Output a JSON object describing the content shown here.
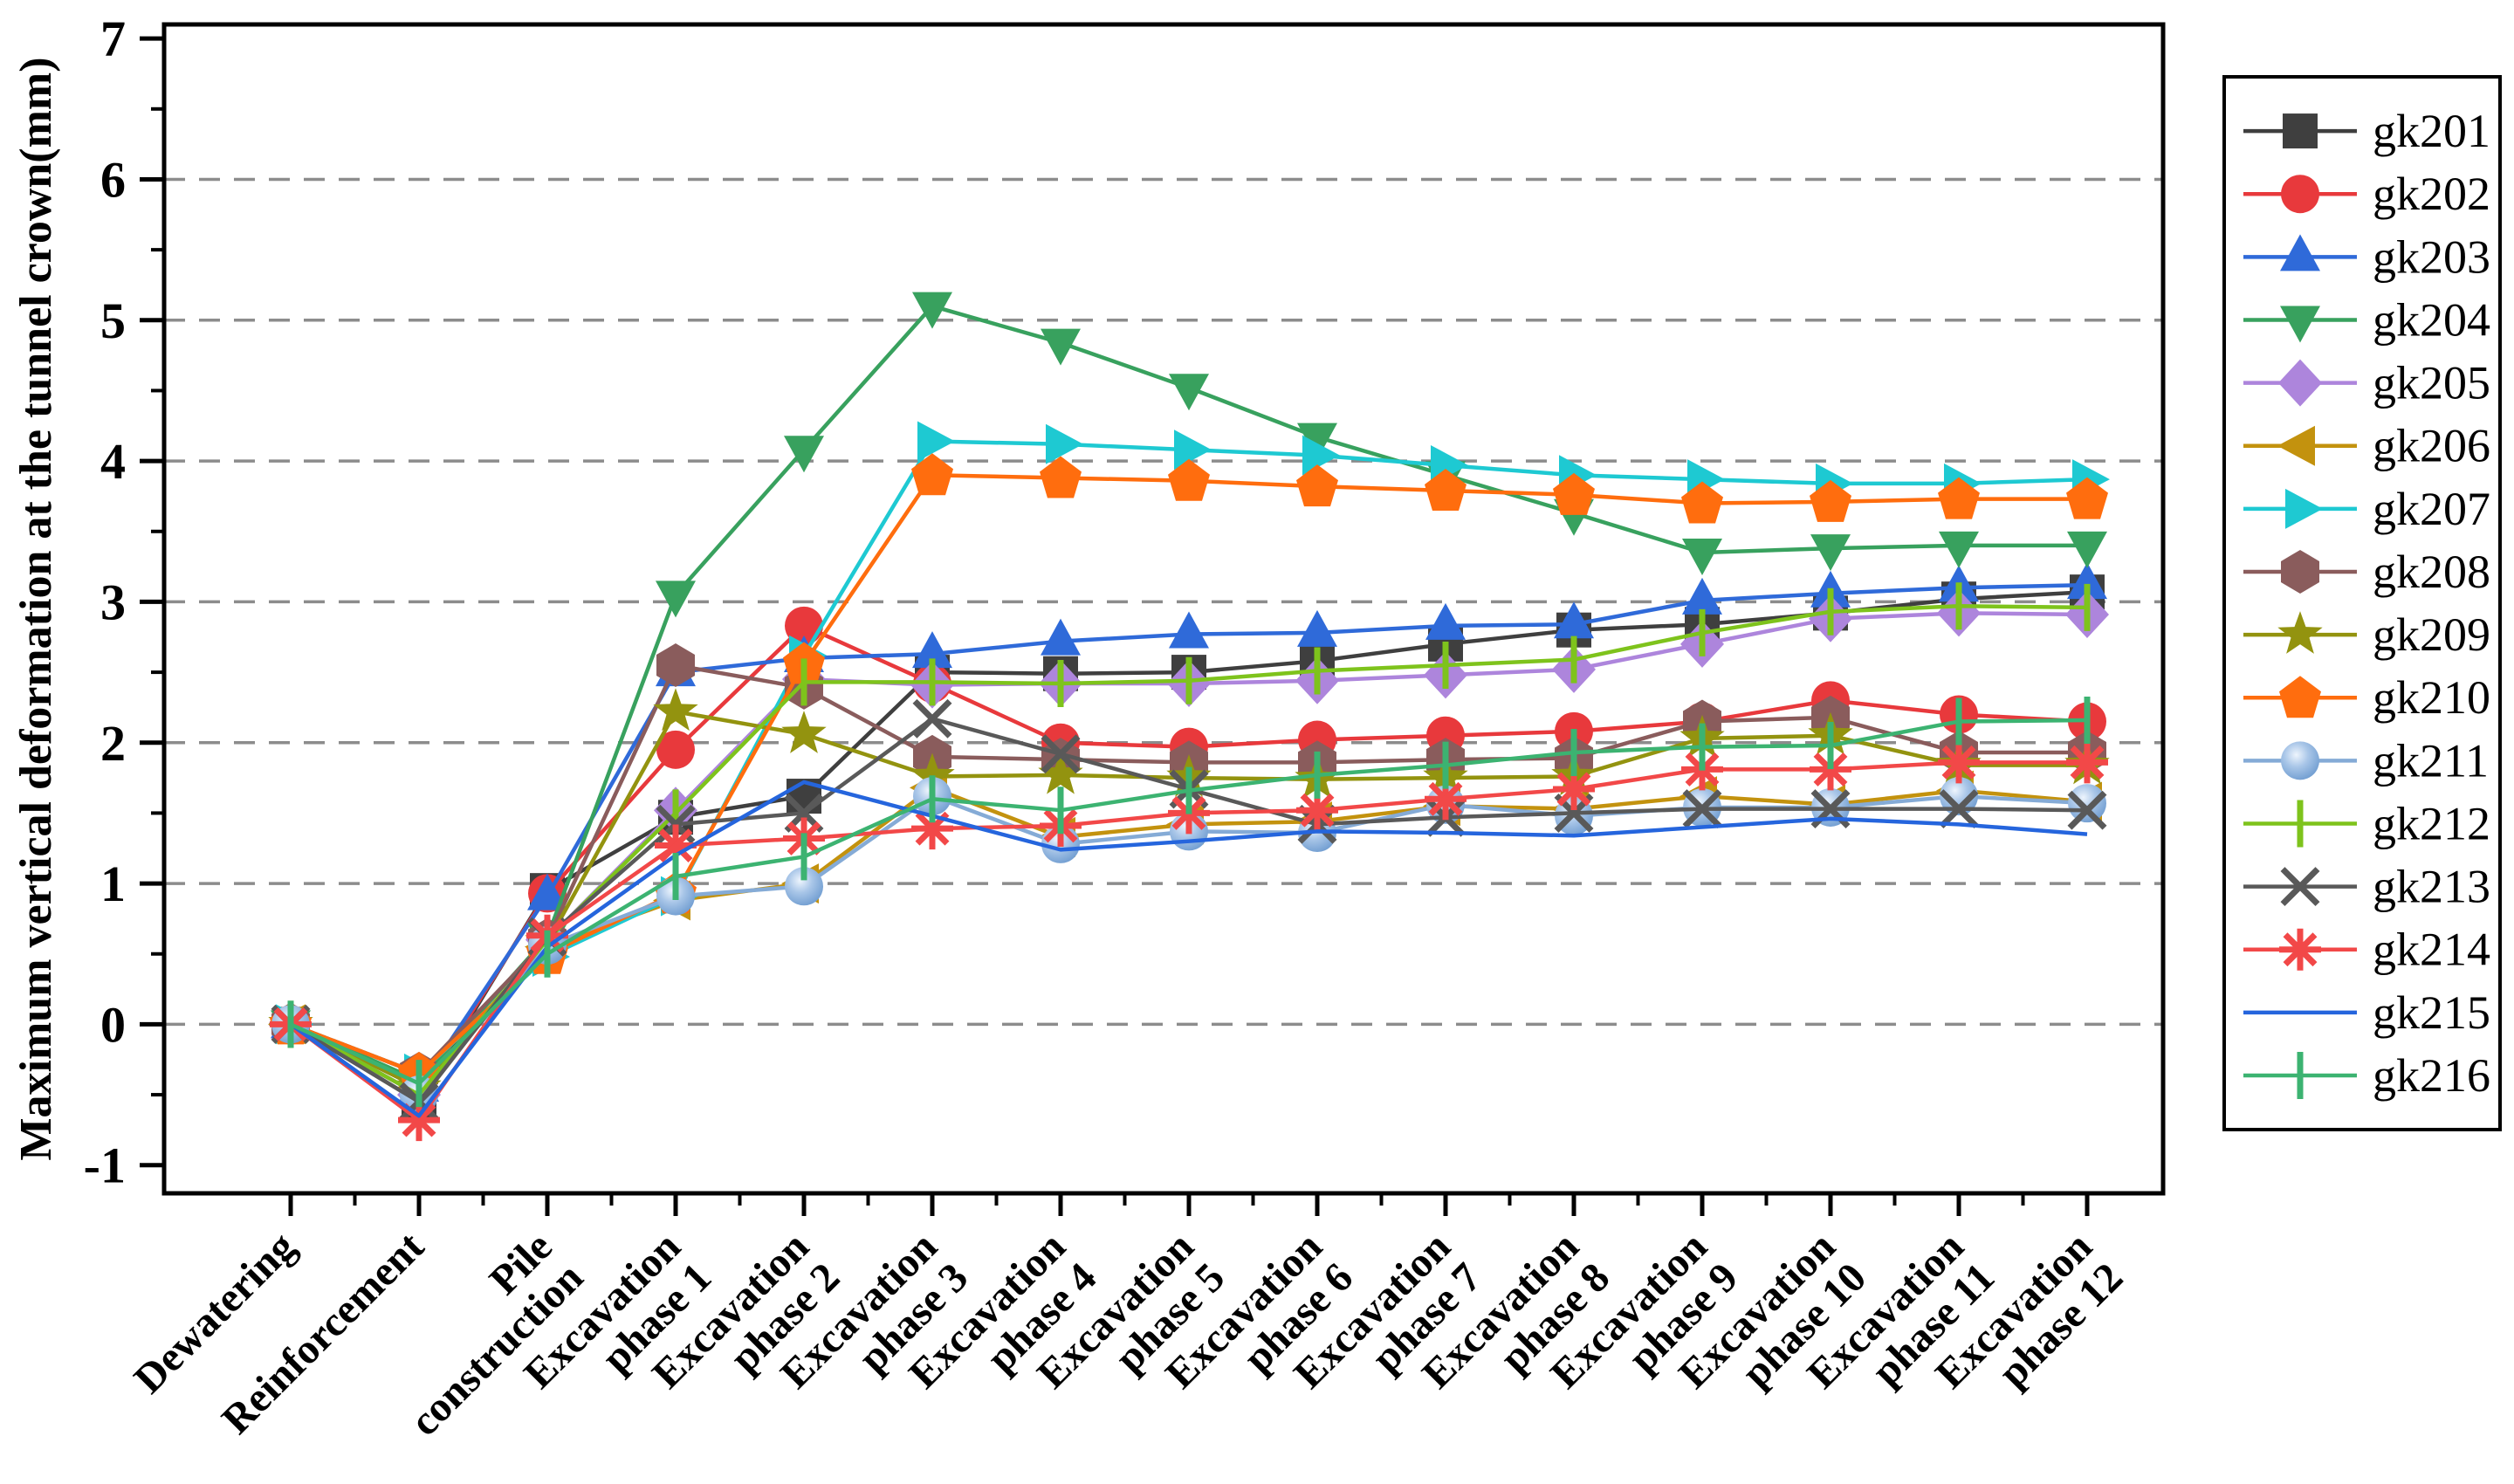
{
  "chart_data": {
    "type": "line",
    "title": "",
    "ylabel": "Maximum vertical deformation at the tunnel crown(mm)",
    "xlabel": "",
    "ylim": [
      -1.2,
      7.1
    ],
    "yticks": [
      -1,
      0,
      1,
      2,
      3,
      4,
      5,
      6,
      7
    ],
    "grid_yticks": [
      0,
      1,
      2,
      3,
      4,
      5,
      6
    ],
    "grid": "dashed-horizontal",
    "legend_position": "right-outside",
    "categories": [
      "Dewatering",
      "Reinforcement",
      "Pile construction",
      "Excavation phase 1",
      "Excavation phase 2",
      "Excavation phase 3",
      "Excavation phase 4",
      "Excavation phase 5",
      "Excavation phase 6",
      "Excavation phase 7",
      "Excavation phase 8",
      "Excavation phase 9",
      "Excavation phase 10",
      "Excavation phase 11",
      "Excavation phase 12"
    ],
    "category_label_lines": [
      [
        "Dewatering"
      ],
      [
        "Reinforcement"
      ],
      [
        "Pile",
        "construction"
      ],
      [
        "Excavation",
        "phase 1"
      ],
      [
        "Excavation",
        "phase 2"
      ],
      [
        "Excavation",
        "phase 3"
      ],
      [
        "Excavation",
        "phase 4"
      ],
      [
        "Excavation",
        "phase 5"
      ],
      [
        "Excavation",
        "phase 6"
      ],
      [
        "Excavation",
        "phase 7"
      ],
      [
        "Excavation",
        "phase 8"
      ],
      [
        "Excavation",
        "phase 9"
      ],
      [
        "Excavation",
        "phase 10"
      ],
      [
        "Excavation",
        "phase 11"
      ],
      [
        "Excavation",
        "phase 12"
      ]
    ],
    "series": [
      {
        "name": "gk201",
        "marker": "square",
        "color": "#3f3f3f",
        "values": [
          0,
          -0.55,
          0.95,
          1.47,
          1.62,
          2.5,
          2.49,
          2.5,
          2.58,
          2.7,
          2.8,
          2.84,
          2.92,
          3.02,
          3.07
        ]
      },
      {
        "name": "gk202",
        "marker": "circle",
        "color": "#e8393c",
        "values": [
          0,
          -0.5,
          0.93,
          1.95,
          2.83,
          2.42,
          2.0,
          1.97,
          2.02,
          2.05,
          2.08,
          2.15,
          2.3,
          2.2,
          2.15
        ]
      },
      {
        "name": "gk203",
        "marker": "triangle-up",
        "color": "#2f6ad9",
        "values": [
          0,
          -0.45,
          0.91,
          2.5,
          2.6,
          2.63,
          2.72,
          2.77,
          2.78,
          2.83,
          2.84,
          3.01,
          3.06,
          3.1,
          3.12
        ]
      },
      {
        "name": "gk204",
        "marker": "triangle-down",
        "color": "#38a15e",
        "values": [
          0,
          -0.4,
          0.62,
          3.05,
          4.08,
          5.1,
          4.84,
          4.52,
          4.17,
          3.9,
          3.63,
          3.35,
          3.38,
          3.4,
          3.4
        ]
      },
      {
        "name": "gk205",
        "marker": "diamond",
        "color": "#ad85dc",
        "values": [
          0,
          -0.5,
          0.6,
          1.52,
          2.45,
          2.41,
          2.42,
          2.42,
          2.44,
          2.48,
          2.52,
          2.7,
          2.88,
          2.92,
          2.91
        ]
      },
      {
        "name": "gk206",
        "marker": "triangle-left",
        "color": "#c3920e",
        "values": [
          0,
          -0.45,
          0.55,
          0.88,
          1.0,
          1.68,
          1.33,
          1.42,
          1.44,
          1.55,
          1.53,
          1.62,
          1.56,
          1.66,
          1.58
        ]
      },
      {
        "name": "gk207",
        "marker": "triangle-right",
        "color": "#1ec9d2",
        "values": [
          0,
          -0.35,
          0.48,
          0.91,
          2.62,
          4.14,
          4.12,
          4.08,
          4.04,
          3.97,
          3.9,
          3.87,
          3.84,
          3.84,
          3.87
        ]
      },
      {
        "name": "gk208",
        "marker": "hexagon",
        "color": "#8a5c5c",
        "values": [
          0,
          -0.35,
          0.6,
          2.55,
          2.39,
          1.9,
          1.88,
          1.86,
          1.86,
          1.88,
          1.89,
          2.15,
          2.18,
          1.93,
          1.93
        ]
      },
      {
        "name": "gk209",
        "marker": "star",
        "color": "#93930f",
        "values": [
          0,
          -0.45,
          0.58,
          2.22,
          2.06,
          1.76,
          1.77,
          1.75,
          1.74,
          1.75,
          1.76,
          2.03,
          2.05,
          1.84,
          1.84
        ]
      },
      {
        "name": "gk210",
        "marker": "pentagon",
        "color": "#ff6d0e",
        "values": [
          0,
          -0.35,
          0.5,
          0.93,
          2.56,
          3.9,
          3.88,
          3.86,
          3.82,
          3.79,
          3.76,
          3.7,
          3.71,
          3.73,
          3.73
        ]
      },
      {
        "name": "gk211",
        "marker": "sphere",
        "color": "#85abd6",
        "values": [
          0,
          -0.5,
          0.56,
          0.91,
          0.98,
          1.62,
          1.28,
          1.37,
          1.36,
          1.56,
          1.48,
          1.54,
          1.54,
          1.62,
          1.57
        ]
      },
      {
        "name": "gk212",
        "marker": "vtick",
        "color": "#7ec31c",
        "values": [
          0,
          -0.5,
          0.6,
          1.5,
          2.43,
          2.43,
          2.42,
          2.44,
          2.51,
          2.55,
          2.59,
          2.78,
          2.93,
          2.97,
          2.96
        ]
      },
      {
        "name": "gk213",
        "marker": "xcross",
        "color": "#595959",
        "values": [
          0,
          -0.55,
          0.62,
          1.42,
          1.5,
          2.17,
          1.92,
          1.67,
          1.42,
          1.47,
          1.5,
          1.53,
          1.53,
          1.53,
          1.52
        ]
      },
      {
        "name": "gk214",
        "marker": "asterisk",
        "color": "#f24848",
        "values": [
          0,
          -0.68,
          0.63,
          1.27,
          1.32,
          1.39,
          1.41,
          1.5,
          1.52,
          1.6,
          1.67,
          1.81,
          1.81,
          1.86,
          1.86
        ]
      },
      {
        "name": "gk215",
        "marker": "none",
        "color": "#2565dd",
        "values": [
          0,
          -0.65,
          0.55,
          1.2,
          1.72,
          1.48,
          1.24,
          1.3,
          1.37,
          1.36,
          1.34,
          1.4,
          1.46,
          1.42,
          1.35
        ]
      },
      {
        "name": "gk216",
        "marker": "vtick",
        "color": "#3cb371",
        "values": [
          0,
          -0.42,
          0.5,
          1.05,
          1.19,
          1.6,
          1.52,
          1.66,
          1.77,
          1.84,
          1.93,
          1.97,
          1.98,
          2.15,
          2.16
        ]
      }
    ],
    "colors": {
      "grid": "#8c8c8c",
      "frame": "#000000",
      "text": "#000000",
      "background": "#ffffff",
      "sphere_highlight": "#eef5fd"
    }
  }
}
